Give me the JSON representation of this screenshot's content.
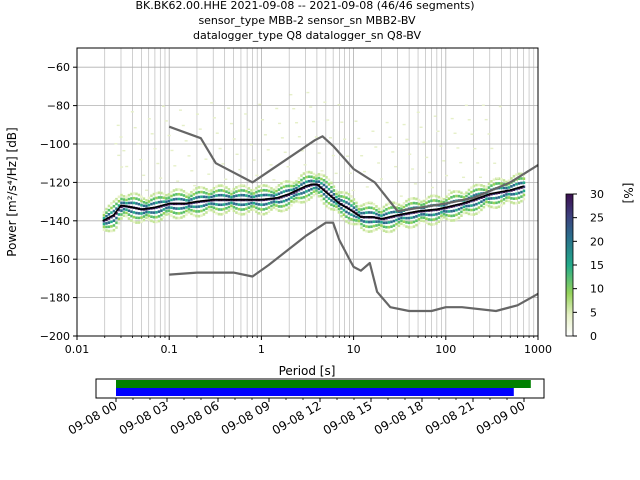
{
  "title_lines": [
    "BK.BK62.00.HHE   2021-09-08 -- 2021-09-08  (46/46 segments)",
    "sensor_type MBB-2 sensor_sn MBB2-BV",
    "datalogger_type Q8 datalogger_sn Q8-BV"
  ],
  "chart_data": [
    {
      "type": "line",
      "xlabel": "Period [s]",
      "ylabel": "Power [m²/s⁴/Hz] [dB]",
      "xscale": "log",
      "xlim": [
        0.01,
        1000
      ],
      "ylim": [
        -200,
        -50
      ],
      "x_ticks": [
        {
          "value": 0.01,
          "label": "0.01"
        },
        {
          "value": 0.1,
          "label": "0.1"
        },
        {
          "value": 1,
          "label": "1"
        },
        {
          "value": 10,
          "label": "10"
        },
        {
          "value": 100,
          "label": "100"
        },
        {
          "value": 1000,
          "label": "1000"
        }
      ],
      "y_ticks": [
        {
          "value": -60,
          "label": "−60"
        },
        {
          "value": -80,
          "label": "−80"
        },
        {
          "value": -100,
          "label": "−100"
        },
        {
          "value": -120,
          "label": "−120"
        },
        {
          "value": -140,
          "label": "−140"
        },
        {
          "value": -160,
          "label": "−160"
        },
        {
          "value": -180,
          "label": "−180"
        },
        {
          "value": -200,
          "label": "−200"
        }
      ],
      "grid": true,
      "colorbar": {
        "label": "[%]",
        "range": [
          0,
          30
        ],
        "ticks": [
          {
            "value": 0,
            "label": "0"
          },
          {
            "value": 5,
            "label": "5"
          },
          {
            "value": 10,
            "label": "10"
          },
          {
            "value": 15,
            "label": "15"
          },
          {
            "value": 20,
            "label": "20"
          },
          {
            "value": 25,
            "label": "25"
          },
          {
            "value": 30,
            "label": "30"
          }
        ]
      },
      "series": [
        {
          "color": "#000000",
          "x": [
            0.019,
            0.025,
            0.03,
            0.04,
            0.05,
            0.07,
            0.1,
            0.15,
            0.2,
            0.3,
            0.5,
            0.7,
            1,
            1.5,
            2,
            3,
            3.5,
            4,
            5,
            7,
            9,
            12,
            16,
            20,
            30,
            50,
            80,
            100,
            150,
            200,
            300,
            500,
            700
          ],
          "y": [
            -140,
            -137,
            -132,
            -133,
            -134,
            -133,
            -131,
            -131,
            -130,
            -129,
            -129,
            -129,
            -129,
            -128,
            -126,
            -122,
            -121,
            -121,
            -125,
            -131,
            -134,
            -138,
            -138,
            -139,
            -137,
            -135,
            -134,
            -133,
            -131,
            -129,
            -126,
            -124,
            -122
          ]
        },
        {
          "color": "#666666",
          "x": [
            0.1,
            0.22,
            0.32,
            0.8,
            3.8,
            4.6,
            6,
            10,
            17,
            30,
            100,
            200,
            500,
            1000
          ],
          "y": [
            -91,
            -97,
            -110,
            -120,
            -98,
            -96,
            -101,
            -113,
            -120,
            -135,
            -131,
            -128,
            -120,
            -111
          ]
        },
        {
          "color": "#666666",
          "x": [
            0.1,
            0.2,
            0.5,
            0.8,
            1.2,
            3,
            5,
            6,
            7,
            9,
            10,
            12,
            15,
            18,
            25,
            40,
            70,
            100,
            150,
            350,
            600,
            1000
          ],
          "y": [
            -168,
            -167,
            -167,
            -169,
            -163,
            -148,
            -141,
            -141,
            -150,
            -160,
            -164,
            -166,
            -162,
            -177,
            -185,
            -187,
            -187,
            -185,
            -185,
            -187,
            -184,
            -178
          ]
        }
      ]
    },
    {
      "type": "timeline",
      "x_ticks": [
        "09-08 00",
        "09-08 03",
        "09-08 06",
        "09-08 09",
        "09-08 12",
        "09-08 15",
        "09-08 18",
        "09-08 21",
        "09-09 00"
      ],
      "bars": [
        {
          "color": "#008000",
          "start_hours": 0,
          "end_hours": 24.4
        },
        {
          "color": "#0000ff",
          "start_hours": 0,
          "end_hours": 23.4
        }
      ]
    }
  ]
}
